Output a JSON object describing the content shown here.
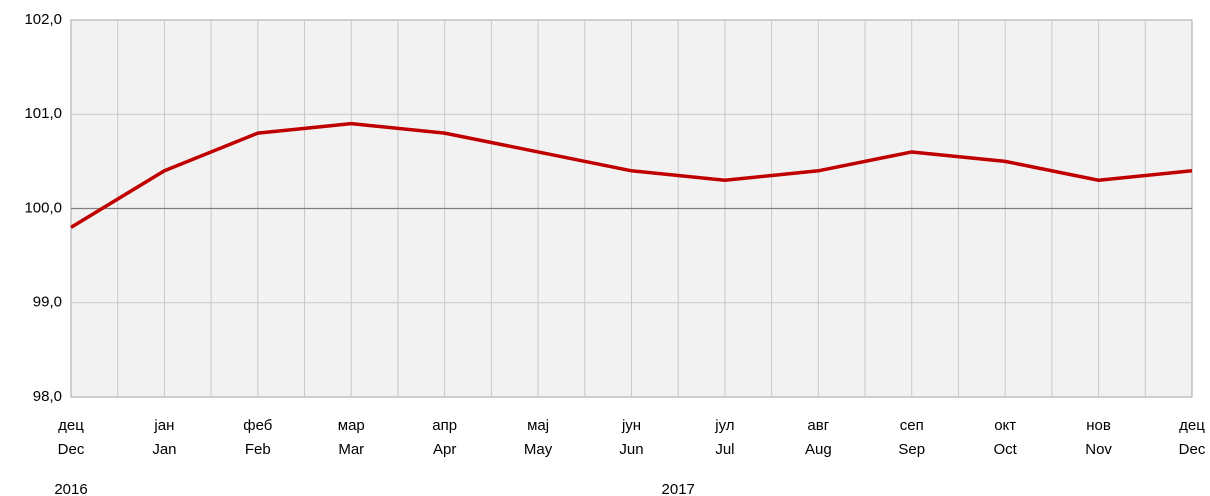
{
  "chart_data": {
    "type": "line",
    "categories": [
      [
        "дец",
        "Dec"
      ],
      [
        "јан",
        "Jan"
      ],
      [
        "феб",
        "Feb"
      ],
      [
        "мар",
        "Mar"
      ],
      [
        "апр",
        "Apr"
      ],
      [
        "мај",
        "May"
      ],
      [
        "јун",
        "Jun"
      ],
      [
        "јул",
        "Jul"
      ],
      [
        "авг",
        "Aug"
      ],
      [
        "сеп",
        "Sep"
      ],
      [
        "окт",
        "Oct"
      ],
      [
        "нов",
        "Nov"
      ],
      [
        "дец",
        "Dec"
      ]
    ],
    "year_labels": [
      "2016",
      "2017"
    ],
    "series": [
      {
        "color": "#c00000",
        "values": [
          99.8,
          100.4,
          100.8,
          100.9,
          100.8,
          100.6,
          100.4,
          100.3,
          100.4,
          100.6,
          100.5,
          100.3,
          100.4
        ]
      }
    ],
    "ylim": [
      98,
      102
    ],
    "yticks": [
      {
        "value": 98,
        "label": "98,0"
      },
      {
        "value": 99,
        "label": "99,0"
      },
      {
        "value": 100,
        "label": "100,0"
      },
      {
        "value": 101,
        "label": "101,0"
      },
      {
        "value": 102,
        "label": "102,0"
      }
    ],
    "baseline": 100,
    "grid": true
  }
}
